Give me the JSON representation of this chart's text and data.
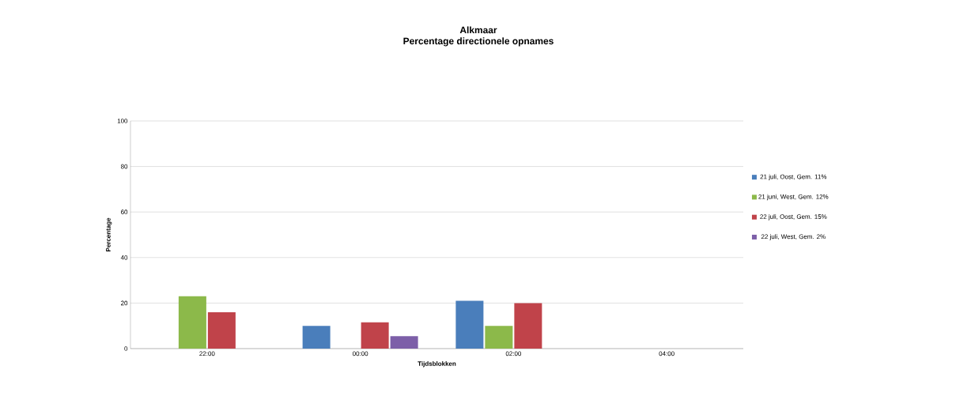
{
  "chart_data": {
    "type": "bar",
    "title": "Alkmaar\nPercentage directionele opnames",
    "xlabel": "Tijdsblokken",
    "ylabel": "Percentage",
    "categories": [
      "22:00",
      "00:00",
      "02:00",
      "04:00"
    ],
    "series": [
      {
        "name": "21 juli, Oost, Gem. 11%",
        "color": "#4a7ebb",
        "values": [
          null,
          10,
          21,
          null
        ]
      },
      {
        "name": "21 juni, West, Gem. 12%",
        "color": "#8cb94a",
        "values": [
          23,
          null,
          10,
          null
        ]
      },
      {
        "name": "22 juli, Oost, Gem. 15%",
        "color": "#c0434a",
        "values": [
          16,
          11.5,
          20,
          null
        ]
      },
      {
        "name": "22 juli, West, Gem. 2%",
        "color": "#7d5fa8",
        "values": [
          null,
          5.5,
          null,
          null
        ]
      }
    ],
    "ylim": [
      0,
      100
    ],
    "yticks": [
      0,
      20,
      40,
      60,
      80,
      100
    ],
    "grid": "y",
    "legend": "right"
  }
}
